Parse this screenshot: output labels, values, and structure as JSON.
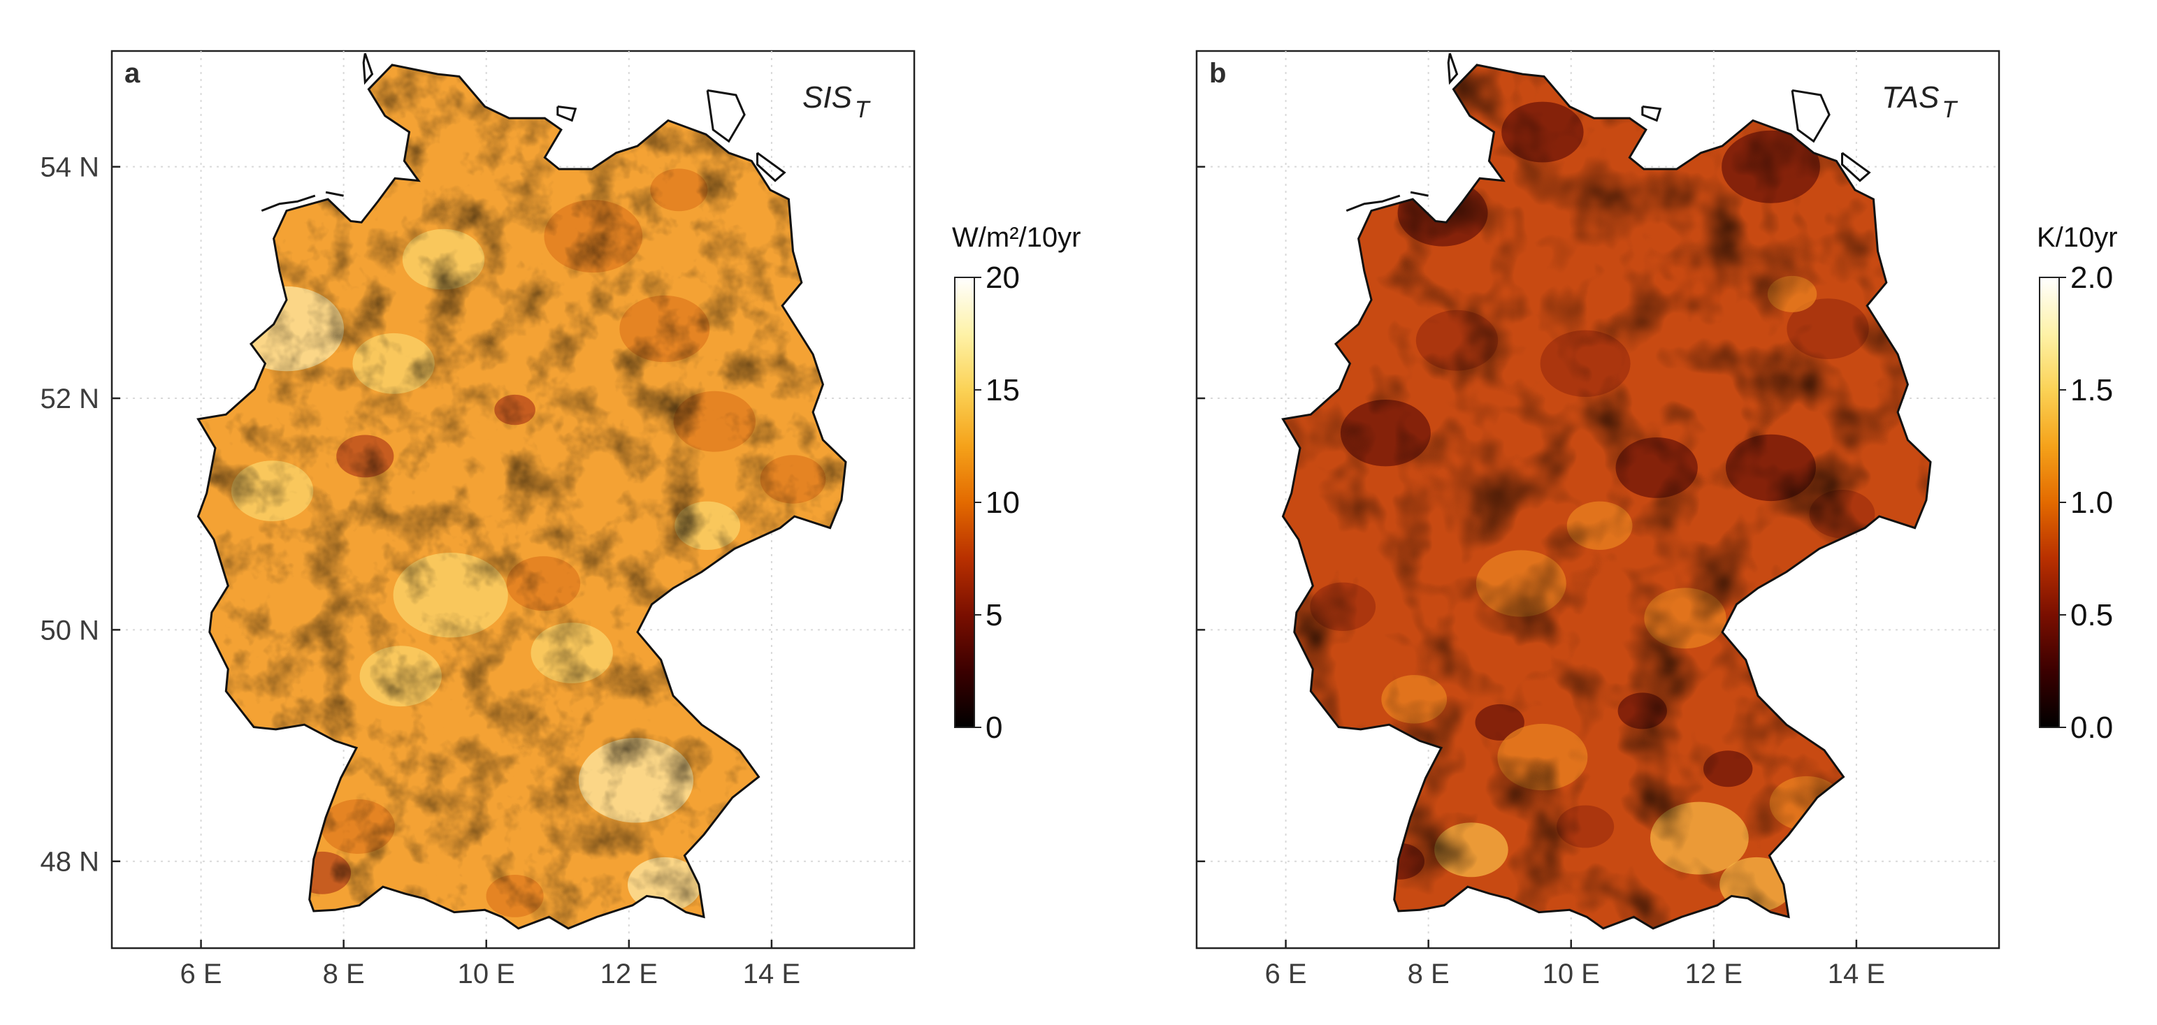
{
  "figure": {
    "domain": "Map",
    "lon_range": [
      4.75,
      16.0
    ],
    "lat_range": [
      47.25,
      55.0
    ]
  },
  "axes": {
    "x_ticks": [
      {
        "value": 6,
        "label": "6 E"
      },
      {
        "value": 8,
        "label": "8 E"
      },
      {
        "value": 10,
        "label": "10 E"
      },
      {
        "value": 12,
        "label": "12 E"
      },
      {
        "value": 14,
        "label": "14 E"
      }
    ],
    "y_ticks": [
      {
        "value": 54,
        "label": "54 N"
      },
      {
        "value": 52,
        "label": "52 N"
      },
      {
        "value": 50,
        "label": "50 N"
      },
      {
        "value": 48,
        "label": "48 N"
      }
    ]
  },
  "panels": [
    {
      "id": "a",
      "letter": "a",
      "variable": "SIS",
      "subscript": "T",
      "unit": "W/m²/10yr",
      "colorbar_range": [
        0,
        20
      ],
      "colorbar_ticks": [
        "0",
        "5",
        "10",
        "15",
        "20"
      ],
      "colorbar_tick_values": [
        0,
        5,
        10,
        15,
        20
      ],
      "field_level": 0.72,
      "field_variation": 0.1,
      "colors": {
        "base": "#f4a234",
        "shade": "#e07a1e",
        "light": "#fbd36a",
        "lightest": "#fde7a3",
        "dark": "#b8451a"
      }
    },
    {
      "id": "b",
      "letter": "b",
      "variable": "TAS",
      "subscript": "T",
      "unit": "K/10yr",
      "colorbar_range": [
        0.0,
        2.0
      ],
      "colorbar_ticks": [
        "0.0",
        "0.5",
        "1.0",
        "1.5",
        "2.0"
      ],
      "colorbar_tick_values": [
        0.0,
        0.5,
        1.0,
        1.5,
        2.0
      ],
      "field_level": 0.52,
      "field_variation": 0.18,
      "colors": {
        "base": "#c84a12",
        "shade": "#a1300d",
        "light": "#ea8220",
        "lightest": "#f7b544",
        "dark": "#6f1608"
      }
    }
  ],
  "colormap": [
    "#000000",
    "#3b0000",
    "#7a0f00",
    "#b83000",
    "#e36a00",
    "#f5a21a",
    "#fbd256",
    "#fef2a8",
    "#ffffff"
  ]
}
